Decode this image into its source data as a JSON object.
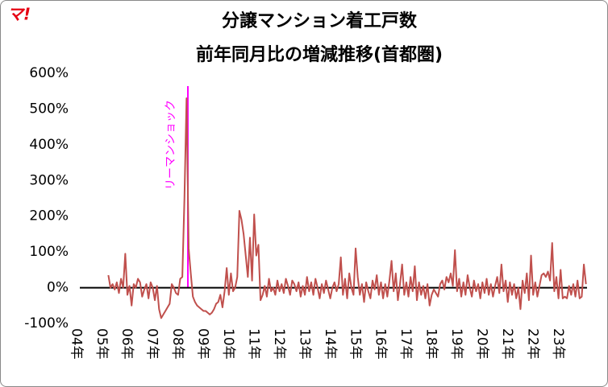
{
  "logo": "マ!",
  "chart_data": {
    "type": "line",
    "title": [
      "分譲マンション着工戸数",
      "前年同月比の増減推移(首都圏)"
    ],
    "annotation": "リーマンショック",
    "categories": [
      "04年",
      null,
      null,
      null,
      null,
      null,
      null,
      null,
      null,
      null,
      null,
      null,
      "05年",
      null,
      null,
      null,
      null,
      null,
      null,
      null,
      null,
      null,
      null,
      null,
      "06年",
      null,
      null,
      null,
      null,
      null,
      null,
      null,
      null,
      null,
      null,
      null,
      "07年",
      null,
      null,
      null,
      null,
      null,
      null,
      null,
      null,
      null,
      null,
      null,
      "08年",
      null,
      null,
      null,
      null,
      null,
      null,
      null,
      null,
      null,
      null,
      null,
      "09年",
      null,
      null,
      null,
      null,
      null,
      null,
      null,
      null,
      null,
      null,
      null,
      "10年",
      null,
      null,
      null,
      null,
      null,
      null,
      null,
      null,
      null,
      null,
      null,
      "11年",
      null,
      null,
      null,
      null,
      null,
      null,
      null,
      null,
      null,
      null,
      null,
      "12年",
      null,
      null,
      null,
      null,
      null,
      null,
      null,
      null,
      null,
      null,
      null,
      "13年",
      null,
      null,
      null,
      null,
      null,
      null,
      null,
      null,
      null,
      null,
      null,
      "14年",
      null,
      null,
      null,
      null,
      null,
      null,
      null,
      null,
      null,
      null,
      null,
      "15年",
      null,
      null,
      null,
      null,
      null,
      null,
      null,
      null,
      null,
      null,
      null,
      "16年",
      null,
      null,
      null,
      null,
      null,
      null,
      null,
      null,
      null,
      null,
      null,
      "17年",
      null,
      null,
      null,
      null,
      null,
      null,
      null,
      null,
      null,
      null,
      null,
      "18年",
      null,
      null,
      null,
      null,
      null,
      null,
      null,
      null,
      null,
      null,
      null,
      "19年",
      null,
      null,
      null,
      null,
      null,
      null,
      null,
      null,
      null,
      null,
      null,
      "20年",
      null,
      null,
      null,
      null,
      null,
      null,
      null,
      null,
      null,
      null,
      null,
      "21年",
      null,
      null,
      null,
      null,
      null,
      null,
      null,
      null,
      null,
      null,
      null,
      "22年",
      null,
      null,
      null,
      null,
      null,
      null,
      null,
      null,
      null,
      null,
      null,
      "23年",
      null,
      null,
      null,
      null,
      null,
      null,
      null,
      null,
      null,
      null,
      null
    ],
    "series": [
      {
        "color": "#c0504d",
        "values": [
          null,
          null,
          null,
          null,
          null,
          null,
          null,
          null,
          null,
          null,
          null,
          null,
          null,
          35,
          0,
          10,
          -5,
          15,
          -15,
          25,
          0,
          95,
          -20,
          5,
          -50,
          10,
          0,
          25,
          15,
          -25,
          -5,
          10,
          -30,
          15,
          0,
          -35,
          5,
          -60,
          -85,
          -75,
          -65,
          -55,
          -45,
          10,
          0,
          -15,
          -20,
          25,
          30,
          250,
          530,
          110,
          40,
          -25,
          -40,
          -50,
          -55,
          -60,
          -65,
          -65,
          -70,
          -75,
          -70,
          -60,
          -45,
          -40,
          -20,
          -55,
          -10,
          55,
          -20,
          40,
          -10,
          0,
          30,
          215,
          190,
          150,
          90,
          30,
          140,
          20,
          205,
          90,
          120,
          -35,
          -20,
          5,
          -25,
          25,
          -10,
          0,
          -20,
          20,
          -10,
          10,
          -15,
          25,
          5,
          -20,
          20,
          10,
          -10,
          15,
          -25,
          5,
          -20,
          30,
          -10,
          15,
          -20,
          25,
          0,
          -30,
          10,
          -15,
          20,
          -5,
          -30,
          0,
          15,
          -10,
          10,
          85,
          -20,
          25,
          -30,
          40,
          0,
          -20,
          110,
          30,
          -20,
          10,
          -40,
          15,
          -10,
          -30,
          20,
          -5,
          35,
          -20,
          15,
          -30,
          10,
          -25,
          20,
          75,
          -10,
          40,
          -35,
          10,
          65,
          -20,
          15,
          -25,
          30,
          -10,
          60,
          -35,
          15,
          -20,
          5,
          -30,
          10,
          -50,
          -20,
          -5,
          -15,
          -25,
          10,
          20,
          -5,
          30,
          15,
          40,
          5,
          105,
          -10,
          25,
          -25,
          15,
          -20,
          35,
          0,
          -25,
          20,
          -10,
          10,
          -30,
          15,
          -15,
          25,
          -20,
          10,
          -25,
          5,
          30,
          -15,
          65,
          -10,
          20,
          -40,
          15,
          -20,
          10,
          -30,
          0,
          -60,
          20,
          -15,
          40,
          -35,
          90,
          -20,
          15,
          -25,
          5,
          35,
          40,
          30,
          45,
          20,
          125,
          -10,
          30,
          -30,
          50,
          -30,
          -25,
          -30,
          5,
          -20,
          10,
          -25,
          20,
          -30,
          -25,
          65,
          10
        ]
      }
    ],
    "ylim": [
      -100,
      600
    ],
    "yticks": [
      {
        "value": -100,
        "label": "-100%"
      },
      {
        "value": 0,
        "label": "0%"
      },
      {
        "value": 100,
        "label": "100%"
      },
      {
        "value": 200,
        "label": "200%"
      },
      {
        "value": 300,
        "label": "300%"
      },
      {
        "value": 400,
        "label": "400%"
      },
      {
        "value": 500,
        "label": "500%"
      },
      {
        "value": 600,
        "label": "600%"
      }
    ],
    "grid": false
  }
}
